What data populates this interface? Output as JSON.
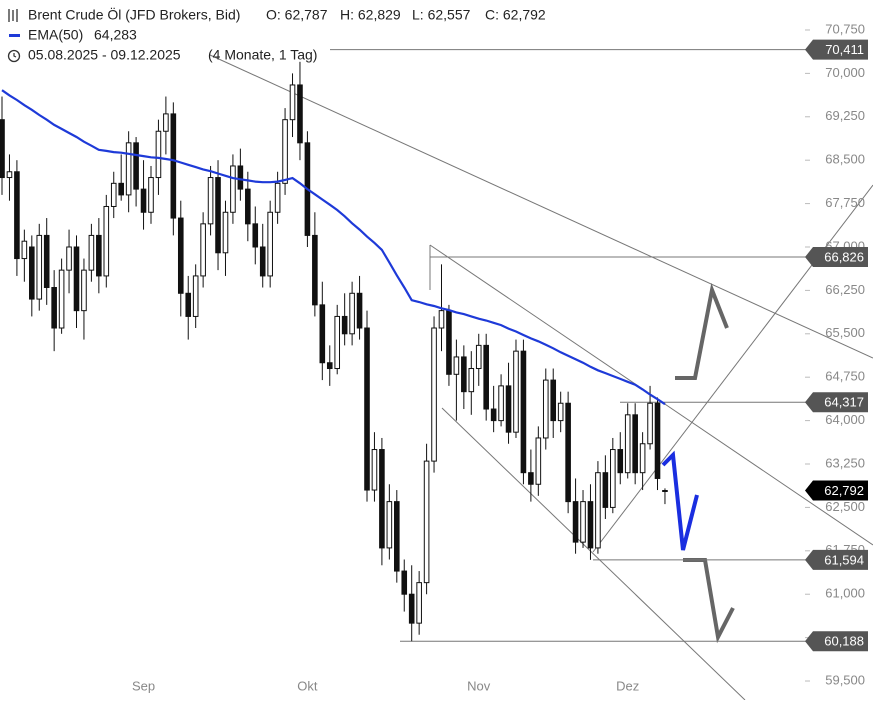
{
  "chart_data": {
    "type": "candlestick",
    "title": "Brent Crude Öl (JFD Brokers, Bid)",
    "ohlc_labels": [
      "O: 62,787",
      "H: 62,829",
      "L: 62,557",
      "C: 62,792"
    ],
    "date_range": "05.08.2025 - 09.12.2025",
    "period": "(4 Monate, 1 Tag)",
    "open": [
      69.2,
      68.2,
      68.3,
      66.8,
      67.0,
      66.1,
      67.2,
      66.3,
      65.6,
      66.6,
      67.0,
      65.9,
      66.6,
      67.2,
      66.5,
      67.7,
      68.1,
      67.9,
      68.8,
      68.0,
      67.6,
      68.2,
      69.0,
      69.3,
      67.5,
      66.2,
      65.8,
      66.5,
      67.4,
      68.2,
      66.9,
      67.6,
      68.4,
      68.0,
      67.4,
      67.0,
      66.5,
      67.6,
      68.1,
      69.2,
      69.8,
      68.8,
      67.2,
      66.0,
      65.0,
      64.9,
      65.8,
      65.5,
      66.2,
      65.6,
      62.8,
      63.5,
      61.8,
      62.6,
      61.4,
      61.0,
      60.5,
      61.2,
      63.3,
      65.6,
      65.9,
      64.8,
      65.1,
      64.5,
      64.9,
      65.3,
      64.2,
      64.0,
      64.6,
      63.8,
      65.2,
      63.1,
      62.9,
      63.7,
      64.7,
      64.0,
      64.3,
      62.6,
      61.9,
      62.6,
      61.8,
      63.1,
      62.5,
      63.5,
      63.1,
      64.1,
      63.1,
      63.6,
      64.3,
      62.787
    ],
    "high": [
      69.6,
      68.6,
      68.5,
      67.3,
      67.2,
      67.4,
      67.5,
      66.6,
      66.8,
      67.3,
      67.2,
      66.8,
      67.4,
      67.5,
      67.9,
      68.3,
      68.6,
      69.0,
      68.9,
      68.5,
      68.4,
      69.2,
      69.6,
      69.5,
      67.8,
      66.5,
      66.7,
      67.6,
      68.4,
      68.5,
      67.8,
      68.6,
      68.7,
      68.3,
      67.7,
      67.4,
      67.8,
      68.3,
      69.4,
      70.0,
      70.2,
      69.0,
      67.6,
      66.4,
      65.3,
      66.0,
      66.2,
      66.4,
      66.5,
      65.9,
      63.8,
      63.7,
      62.9,
      62.8,
      61.6,
      61.5,
      61.4,
      63.6,
      65.8,
      66.7,
      66.0,
      65.4,
      65.3,
      65.2,
      65.5,
      65.5,
      64.6,
      64.8,
      65.0,
      65.4,
      65.4,
      63.5,
      63.9,
      64.9,
      64.9,
      64.5,
      64.5,
      63.0,
      62.8,
      62.9,
      63.3,
      63.4,
      63.7,
      63.8,
      64.3,
      64.3,
      63.8,
      64.6,
      64.4,
      62.829
    ],
    "low": [
      67.9,
      67.8,
      66.5,
      66.4,
      65.8,
      65.9,
      66.0,
      65.2,
      65.5,
      66.2,
      65.6,
      65.4,
      66.4,
      66.2,
      66.3,
      67.5,
      67.8,
      67.6,
      67.7,
      67.3,
      67.4,
      67.9,
      68.6,
      67.2,
      65.8,
      65.4,
      65.6,
      66.3,
      67.2,
      66.6,
      66.5,
      67.4,
      67.8,
      67.1,
      66.7,
      66.3,
      66.3,
      67.4,
      67.9,
      68.9,
      68.5,
      67.0,
      65.8,
      64.7,
      64.6,
      64.8,
      65.3,
      65.3,
      65.4,
      62.6,
      62.6,
      61.5,
      61.6,
      61.2,
      60.7,
      60.188,
      60.3,
      61.0,
      63.1,
      65.2,
      64.6,
      64.0,
      64.2,
      64.1,
      64.6,
      64.0,
      63.8,
      63.9,
      63.6,
      63.7,
      62.9,
      62.6,
      62.7,
      63.5,
      63.7,
      63.8,
      62.4,
      61.7,
      61.8,
      61.594,
      61.7,
      62.3,
      62.4,
      62.9,
      63.0,
      62.9,
      62.8,
      63.5,
      62.8,
      62.557
    ],
    "close": [
      68.2,
      68.3,
      66.8,
      67.1,
      66.1,
      67.2,
      66.3,
      65.6,
      66.6,
      67.0,
      65.9,
      66.6,
      67.2,
      66.5,
      67.7,
      68.1,
      67.9,
      68.8,
      68.0,
      67.6,
      68.2,
      69.0,
      69.3,
      67.5,
      66.2,
      65.8,
      66.5,
      67.4,
      68.2,
      66.9,
      67.6,
      68.4,
      68.0,
      67.4,
      67.0,
      66.5,
      67.6,
      68.1,
      69.2,
      69.8,
      68.8,
      67.2,
      66.0,
      65.0,
      64.9,
      65.8,
      65.5,
      66.2,
      65.6,
      62.8,
      63.5,
      61.8,
      62.6,
      61.4,
      61.0,
      60.5,
      61.2,
      63.3,
      65.6,
      65.9,
      64.8,
      65.1,
      64.5,
      64.9,
      65.3,
      64.2,
      64.0,
      64.6,
      63.8,
      65.2,
      63.1,
      62.9,
      63.7,
      64.7,
      64.0,
      64.3,
      62.6,
      61.9,
      62.6,
      61.8,
      63.1,
      62.5,
      63.5,
      63.1,
      64.1,
      63.1,
      63.6,
      64.3,
      63.0,
      62.792
    ],
    "series": [
      {
        "name": "EMA(50)",
        "color": "#1e3ad8",
        "value_label": "64,283",
        "values": [
          69.71,
          69.62,
          69.54,
          69.45,
          69.37,
          69.28,
          69.2,
          69.11,
          69.04,
          68.97,
          68.9,
          68.82,
          68.75,
          68.68,
          68.66,
          68.64,
          68.63,
          68.61,
          68.59,
          68.57,
          68.55,
          68.54,
          68.52,
          68.5,
          68.46,
          68.42,
          68.38,
          68.34,
          68.31,
          68.27,
          68.23,
          68.19,
          68.17,
          68.15,
          68.13,
          68.12,
          68.12,
          68.13,
          68.16,
          68.19,
          68.1,
          68.0,
          67.91,
          67.82,
          67.73,
          67.64,
          67.53,
          67.41,
          67.3,
          67.18,
          67.07,
          66.95,
          66.73,
          66.51,
          66.3,
          66.08,
          66.05,
          66.01,
          65.98,
          65.94,
          65.91,
          65.87,
          65.84,
          65.8,
          65.76,
          65.73,
          65.69,
          65.65,
          65.59,
          65.54,
          65.48,
          65.42,
          65.37,
          65.31,
          65.25,
          65.18,
          65.12,
          65.06,
          65.0,
          64.93,
          64.87,
          64.82,
          64.77,
          64.72,
          64.67,
          64.62,
          64.54,
          64.45,
          64.37,
          64.283
        ]
      }
    ],
    "xlim": [
      -0.27,
      107.8
    ],
    "xticks": [
      {
        "value": 19,
        "label": "Sep"
      },
      {
        "value": 41,
        "label": "Okt"
      },
      {
        "value": 64,
        "label": "Nov"
      },
      {
        "value": 84,
        "label": "Dez"
      }
    ],
    "ylim": [
      59.172,
      71.268
    ],
    "yticks": [
      {
        "value": 70.75,
        "label": "70,750"
      },
      {
        "value": 70.0,
        "label": "70,000"
      },
      {
        "value": 69.25,
        "label": "69,250"
      },
      {
        "value": 68.5,
        "label": "68,500"
      },
      {
        "value": 67.75,
        "label": "67,750"
      },
      {
        "value": 67.0,
        "label": "67,000"
      },
      {
        "value": 66.25,
        "label": "66,250"
      },
      {
        "value": 65.5,
        "label": "65,500"
      },
      {
        "value": 64.75,
        "label": "64,750"
      },
      {
        "value": 64.0,
        "label": "64,000"
      },
      {
        "value": 63.25,
        "label": "63,250"
      },
      {
        "value": 62.5,
        "label": "62,500"
      },
      {
        "value": 61.75,
        "label": "61,750"
      },
      {
        "value": 61.0,
        "label": "61,000"
      },
      {
        "value": 60.25,
        "label": "60,250"
      },
      {
        "value": 59.5,
        "label": "59,500"
      }
    ],
    "price_levels": [
      {
        "value": 70.411,
        "label": "70,411"
      },
      {
        "value": 66.826,
        "label": "66,826"
      },
      {
        "value": 64.317,
        "label": "64,317"
      },
      {
        "value": 61.594,
        "label": "61,594"
      },
      {
        "value": 60.188,
        "label": "60,188"
      }
    ],
    "last_price": {
      "value": 62.792,
      "label": "62,792"
    },
    "grid": false
  }
}
